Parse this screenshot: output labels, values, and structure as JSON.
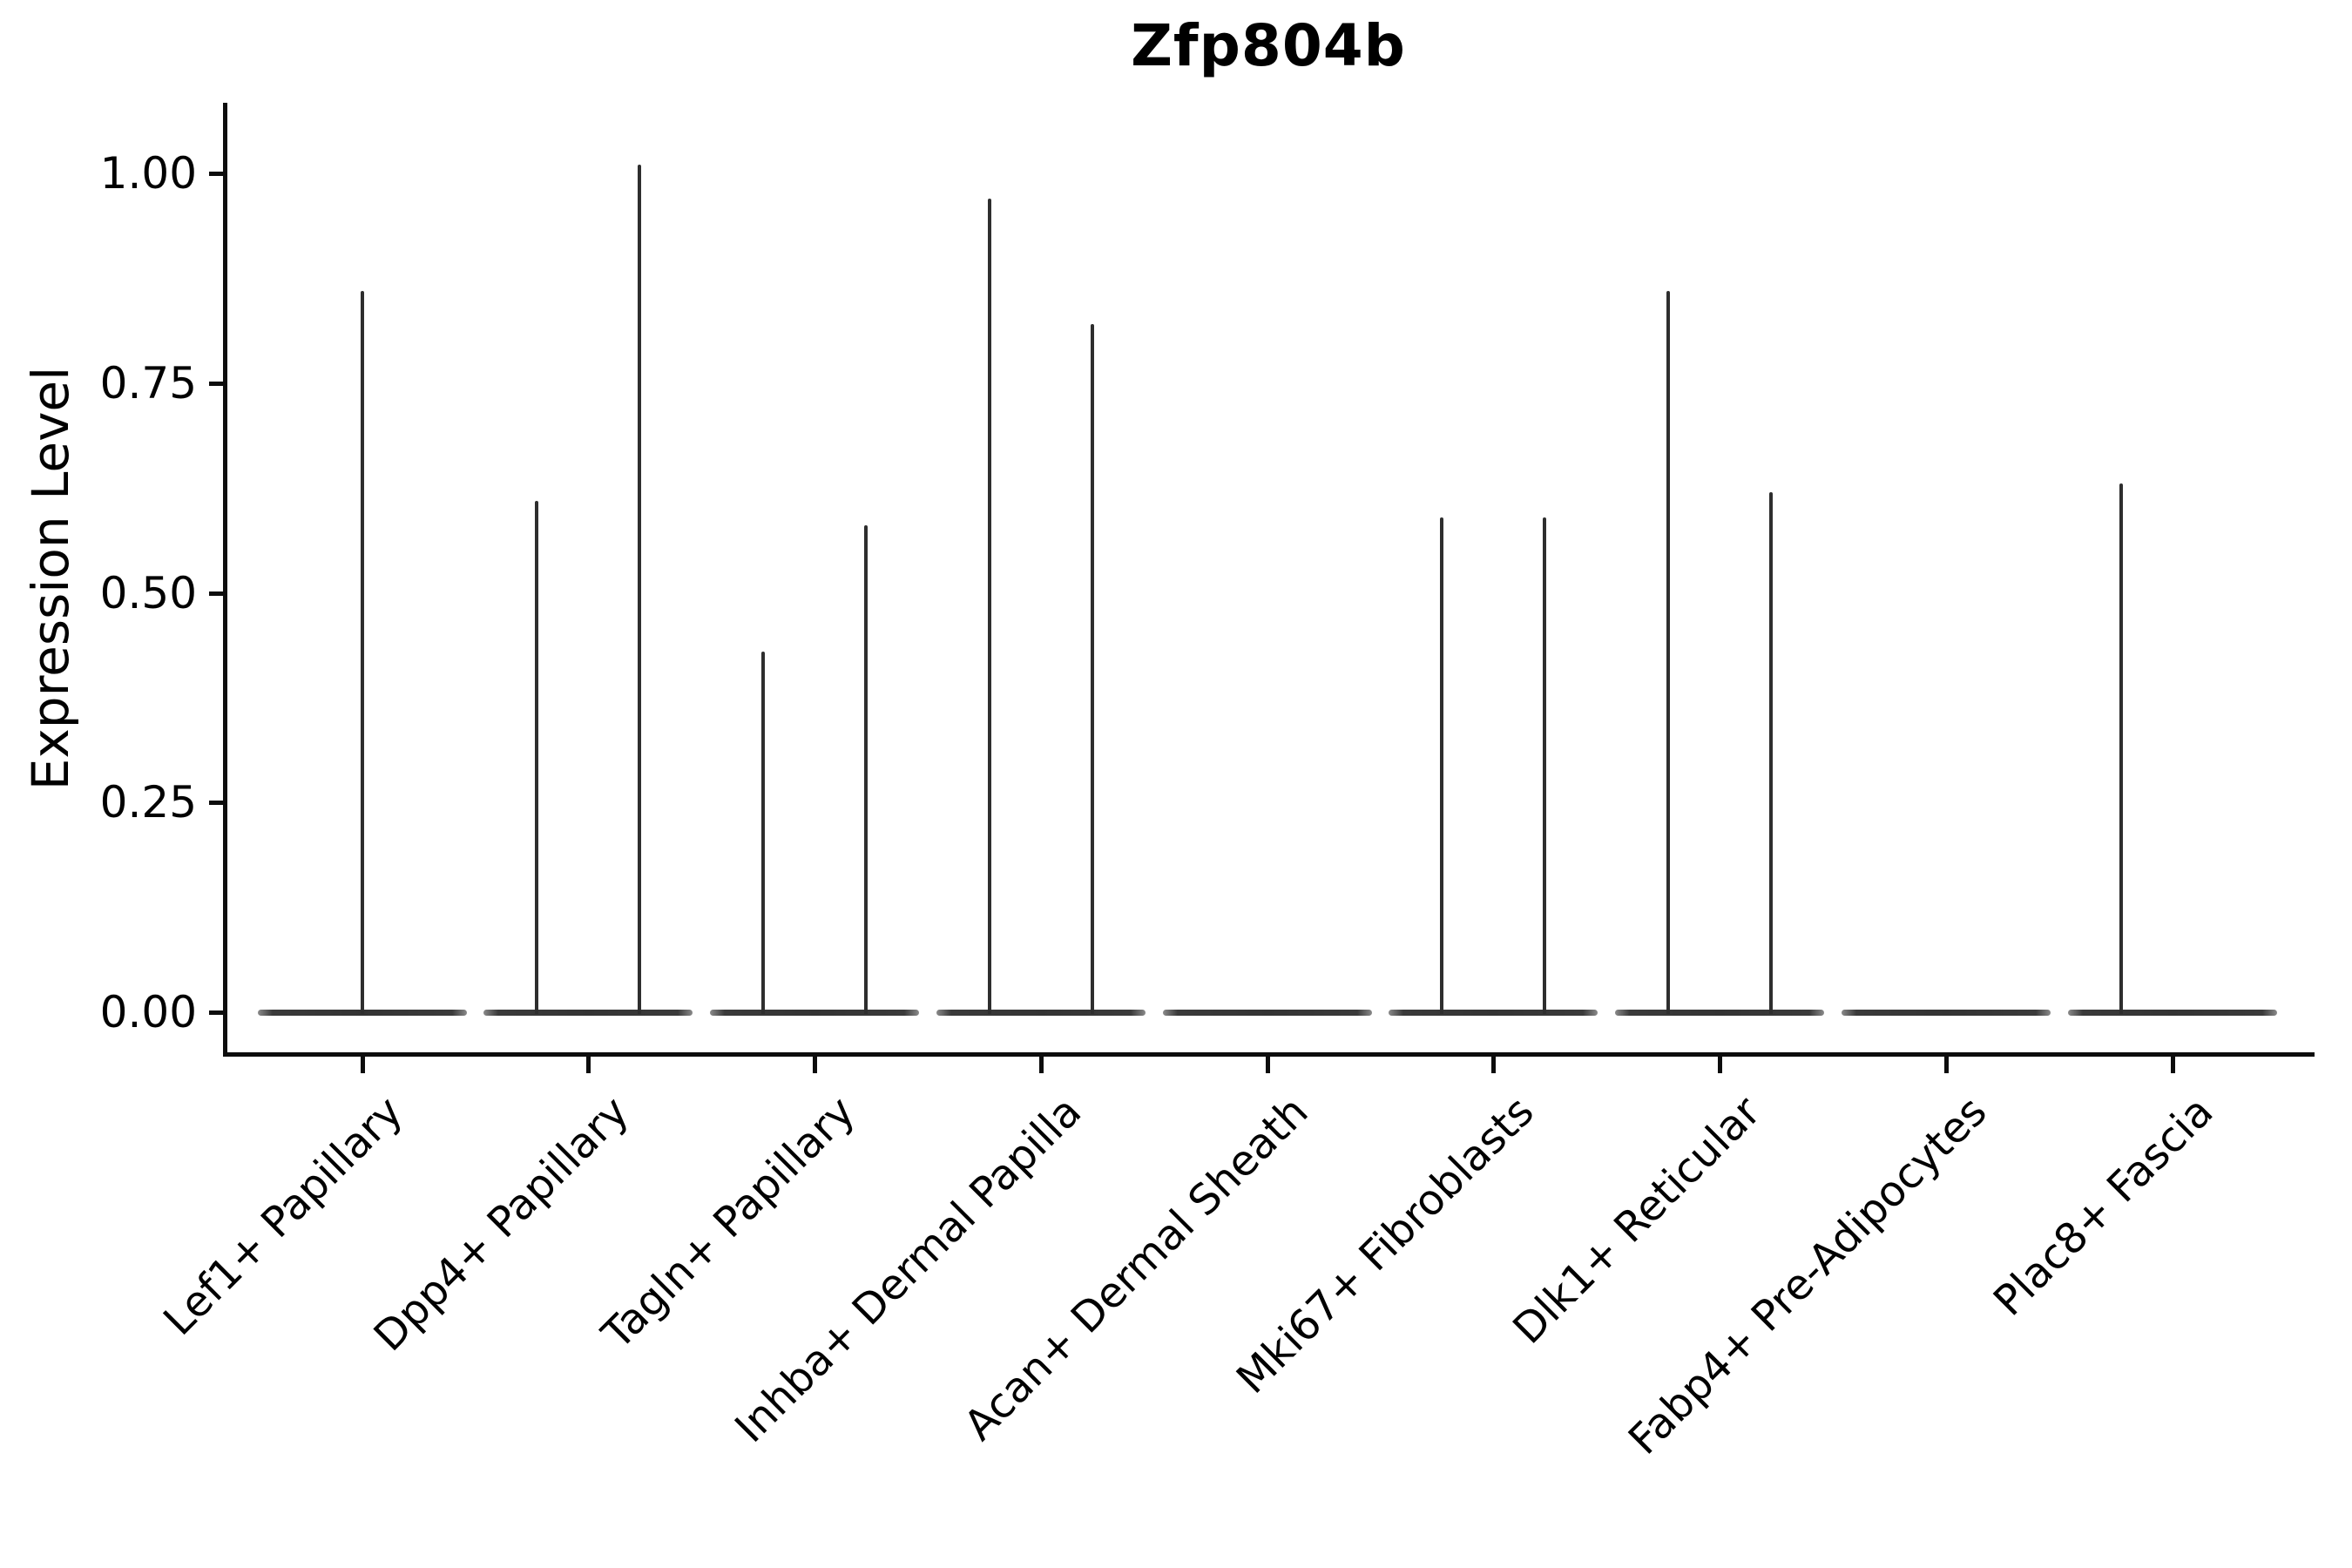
{
  "title": "Zfp804b",
  "chart_data": {
    "type": "violin",
    "title": "Zfp804b",
    "xlabel": "",
    "ylabel": "Expression Level",
    "ylim": [
      0,
      1.05
    ],
    "grid": false,
    "legend_position": "none",
    "background": "#ffffff",
    "yticks": [
      {
        "label": "0.00",
        "value": 0.0
      },
      {
        "label": "0.25",
        "value": 0.25
      },
      {
        "label": "0.50",
        "value": 0.5
      },
      {
        "label": "0.75",
        "value": 0.75
      },
      {
        "label": "1.00",
        "value": 1.0
      }
    ],
    "categories": [
      "Lef1+ Papillary",
      "Dpp4+ Papillary",
      "Tagln+ Papillary",
      "Inhba+ Dermal Papilla",
      "Acan+ Dermal Sheath",
      "Mki67+ Fibroblasts",
      "Dlk1+ Reticular",
      "Fabp4+ Pre-Adipocytes",
      "Plac8+ Fascia"
    ],
    "violins": [
      {
        "category": "Lef1+ Papillary",
        "baseline_value": 0,
        "spikes": [
          {
            "pos": "center",
            "value": 0.86
          }
        ]
      },
      {
        "category": "Dpp4+ Papillary",
        "baseline_value": 0,
        "spikes": [
          {
            "pos": "left",
            "value": 0.61
          },
          {
            "pos": "right",
            "value": 1.01
          }
        ]
      },
      {
        "category": "Tagln+ Papillary",
        "baseline_value": 0,
        "spikes": [
          {
            "pos": "left",
            "value": 0.43
          },
          {
            "pos": "right",
            "value": 0.58
          }
        ]
      },
      {
        "category": "Inhba+ Dermal Papilla",
        "baseline_value": 0,
        "spikes": [
          {
            "pos": "left",
            "value": 0.97
          },
          {
            "pos": "right",
            "value": 0.82
          }
        ]
      },
      {
        "category": "Acan+ Dermal Sheath",
        "baseline_value": 0,
        "spikes": []
      },
      {
        "category": "Mki67+ Fibroblasts",
        "baseline_value": 0,
        "spikes": [
          {
            "pos": "left",
            "value": 0.59
          },
          {
            "pos": "right",
            "value": 0.59
          }
        ]
      },
      {
        "category": "Dlk1+ Reticular",
        "baseline_value": 0,
        "spikes": [
          {
            "pos": "left",
            "value": 0.86
          },
          {
            "pos": "right",
            "value": 0.62
          }
        ]
      },
      {
        "category": "Fabp4+ Pre-Adipocytes",
        "baseline_value": 0,
        "spikes": []
      },
      {
        "category": "Plac8+ Fascia",
        "baseline_value": 0,
        "spikes": [
          {
            "pos": "left",
            "value": 0.63
          }
        ]
      }
    ],
    "colors": {
      "violin_line": "#2e2e2e",
      "baseline": "#3a3a3a",
      "axis": "#0d0d0d",
      "text": "#000000",
      "background": "#ffffff"
    }
  }
}
